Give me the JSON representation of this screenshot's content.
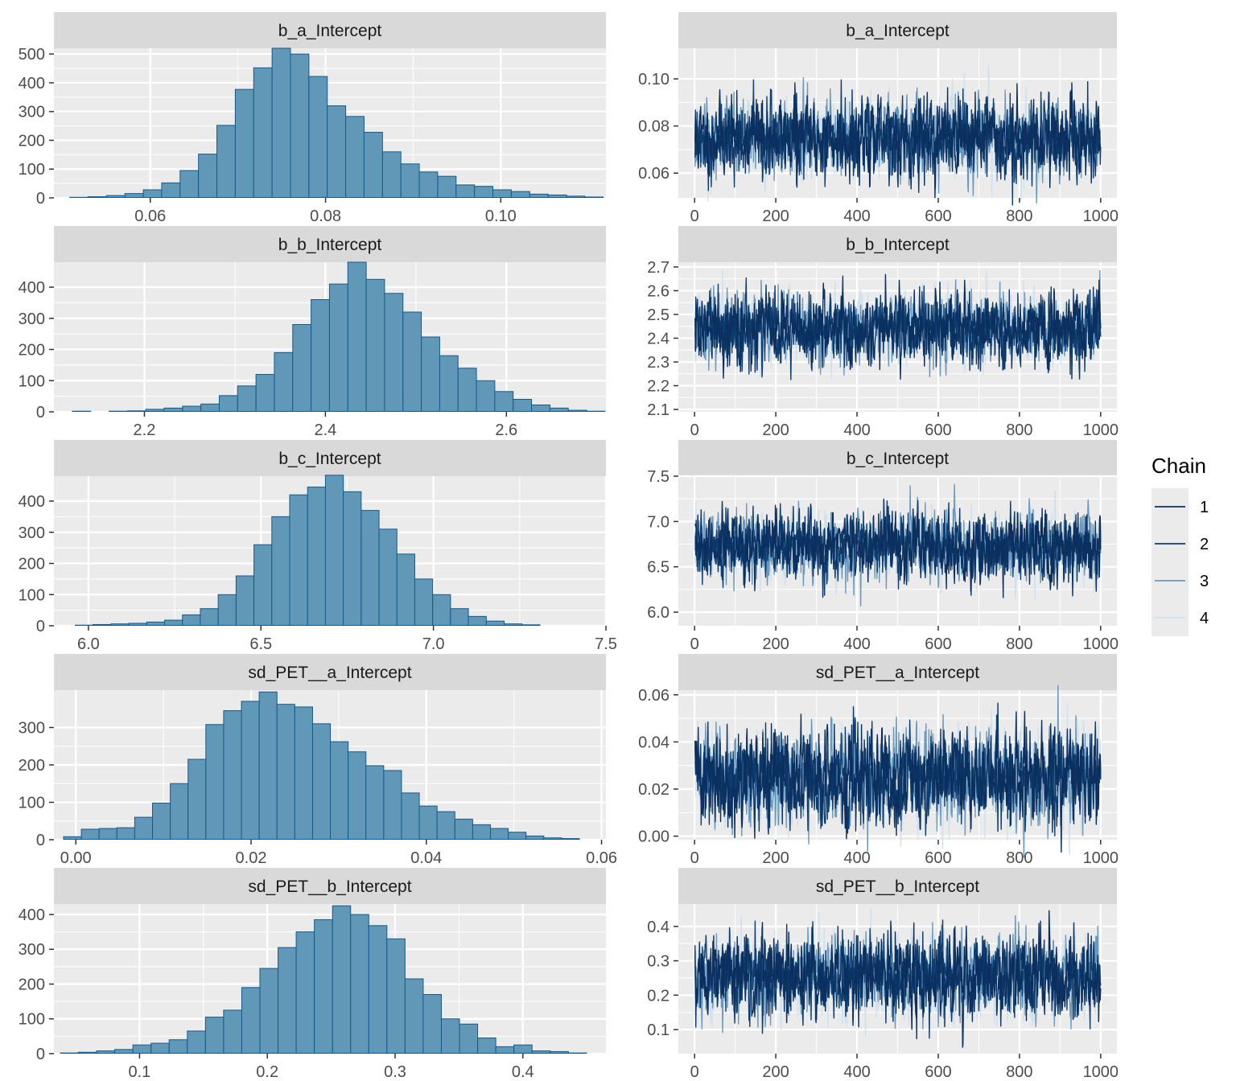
{
  "legend": {
    "title": "Chain",
    "entries": [
      {
        "label": "1",
        "color": "#0b3060"
      },
      {
        "label": "2",
        "color": "#0d3d6e"
      },
      {
        "label": "3",
        "color": "#6b99bd"
      },
      {
        "label": "4",
        "color": "#d0e1ee"
      }
    ]
  },
  "colors": {
    "panel_bg": "#ebebeb",
    "strip_bg": "#d9d9d9",
    "grid": "#ffffff",
    "hist_fill": "#6198b8",
    "hist_outline": "#145a8c"
  },
  "chart_data": [
    {
      "type": "bar",
      "title": "b_a_Intercept",
      "xlim": [
        0.049,
        0.112
      ],
      "ylim": [
        0,
        520
      ],
      "x_ticks": [
        0.06,
        0.08,
        0.1
      ],
      "x_tick_labels": [
        "0.06",
        "0.08",
        "0.10"
      ],
      "y_ticks": [
        0,
        100,
        200,
        300,
        400,
        500
      ],
      "y_tick_labels": [
        "0",
        "100",
        "200",
        "300",
        "400",
        "500"
      ],
      "bin_start": 0.0487,
      "bin_width": 0.0021,
      "counts": [
        0,
        2,
        4,
        8,
        15,
        28,
        52,
        95,
        152,
        252,
        377,
        452,
        520,
        500,
        422,
        320,
        283,
        228,
        160,
        118,
        90,
        75,
        45,
        40,
        28,
        22,
        13,
        10,
        6,
        3
      ]
    },
    {
      "type": "line",
      "title": "b_a_Intercept",
      "xlim": [
        -40,
        1040
      ],
      "ylim": [
        0.0495,
        0.113
      ],
      "x_ticks": [
        0,
        200,
        400,
        600,
        800,
        1000
      ],
      "x_tick_labels": [
        "0",
        "200",
        "400",
        "600",
        "800",
        "1000"
      ],
      "y_ticks": [
        0.06,
        0.08,
        0.1
      ],
      "y_tick_labels": [
        "0.06",
        "0.08",
        "0.10"
      ],
      "iterations": 1000,
      "series": [
        {
          "name": "1",
          "mean": 0.075,
          "sd": 0.008,
          "seed": 11
        },
        {
          "name": "2",
          "mean": 0.075,
          "sd": 0.008,
          "seed": 12
        },
        {
          "name": "3",
          "mean": 0.075,
          "sd": 0.008,
          "seed": 13
        },
        {
          "name": "4",
          "mean": 0.075,
          "sd": 0.008,
          "seed": 14
        }
      ]
    },
    {
      "type": "bar",
      "title": "b_b_Intercept",
      "xlim": [
        2.1,
        2.71
      ],
      "ylim": [
        0,
        480
      ],
      "x_ticks": [
        2.2,
        2.4,
        2.6
      ],
      "x_tick_labels": [
        "2.2",
        "2.4",
        "2.6"
      ],
      "y_ticks": [
        0,
        100,
        200,
        300,
        400
      ],
      "y_tick_labels": [
        "0",
        "100",
        "200",
        "300",
        "400"
      ],
      "bin_start": 2.1,
      "bin_width": 0.0203,
      "counts": [
        1,
        2,
        1,
        2,
        3,
        8,
        12,
        18,
        25,
        52,
        83,
        120,
        190,
        280,
        360,
        410,
        480,
        425,
        380,
        320,
        240,
        180,
        140,
        100,
        65,
        40,
        22,
        12,
        5,
        2
      ]
    },
    {
      "type": "line",
      "title": "b_b_Intercept",
      "xlim": [
        -40,
        1040
      ],
      "ylim": [
        2.09,
        2.72
      ],
      "x_ticks": [
        0,
        200,
        400,
        600,
        800,
        1000
      ],
      "x_tick_labels": [
        "0",
        "200",
        "400",
        "600",
        "800",
        "1000"
      ],
      "y_ticks": [
        2.1,
        2.2,
        2.3,
        2.4,
        2.5,
        2.6,
        2.7
      ],
      "y_tick_labels": [
        "2.1",
        "2.2",
        "2.3",
        "2.4",
        "2.5",
        "2.6",
        "2.7"
      ],
      "iterations": 1000,
      "series": [
        {
          "name": "1",
          "mean": 2.44,
          "sd": 0.07,
          "seed": 21
        },
        {
          "name": "2",
          "mean": 2.44,
          "sd": 0.07,
          "seed": 22
        },
        {
          "name": "3",
          "mean": 2.44,
          "sd": 0.07,
          "seed": 23
        },
        {
          "name": "4",
          "mean": 2.44,
          "sd": 0.07,
          "seed": 24
        }
      ]
    },
    {
      "type": "bar",
      "title": "b_c_Intercept",
      "xlim": [
        5.9,
        7.5
      ],
      "ylim": [
        0,
        480
      ],
      "x_ticks": [
        6.0,
        6.5,
        7.0,
        7.5
      ],
      "x_tick_labels": [
        "6.0",
        "6.5",
        "7.0",
        "7.5"
      ],
      "y_ticks": [
        0,
        100,
        200,
        300,
        400
      ],
      "y_tick_labels": [
        "0",
        "100",
        "200",
        "300",
        "400"
      ],
      "bin_start": 5.91,
      "bin_width": 0.0518,
      "counts": [
        1,
        2,
        4,
        6,
        8,
        12,
        18,
        35,
        55,
        100,
        160,
        260,
        350,
        420,
        445,
        483,
        430,
        370,
        310,
        230,
        150,
        100,
        55,
        30,
        15,
        6,
        3,
        1,
        1,
        0
      ]
    },
    {
      "type": "line",
      "title": "b_c_Intercept",
      "xlim": [
        -40,
        1040
      ],
      "ylim": [
        5.85,
        7.5
      ],
      "x_ticks": [
        0,
        200,
        400,
        600,
        800,
        1000
      ],
      "x_tick_labels": [
        "0",
        "200",
        "400",
        "600",
        "800",
        "1000"
      ],
      "y_ticks": [
        6.0,
        6.5,
        7.0,
        7.5
      ],
      "y_tick_labels": [
        "6.0",
        "6.5",
        "7.0",
        "7.5"
      ],
      "iterations": 1000,
      "series": [
        {
          "name": "1",
          "mean": 6.72,
          "sd": 0.18,
          "seed": 31
        },
        {
          "name": "2",
          "mean": 6.72,
          "sd": 0.18,
          "seed": 32
        },
        {
          "name": "3",
          "mean": 6.72,
          "sd": 0.18,
          "seed": 33
        },
        {
          "name": "4",
          "mean": 6.72,
          "sd": 0.18,
          "seed": 34
        }
      ]
    },
    {
      "type": "bar",
      "title": "sd_PET__a_Intercept",
      "xlim": [
        -0.0025,
        0.0605
      ],
      "ylim": [
        0,
        400
      ],
      "x_ticks": [
        0.0,
        0.02,
        0.04,
        0.06
      ],
      "x_tick_labels": [
        "0.00",
        "0.02",
        "0.04",
        "0.06"
      ],
      "y_ticks": [
        0,
        100,
        200,
        300
      ],
      "y_tick_labels": [
        "0",
        "100",
        "200",
        "300"
      ],
      "bin_start": -0.0014,
      "bin_width": 0.00203,
      "counts": [
        8,
        28,
        30,
        32,
        60,
        98,
        150,
        215,
        308,
        345,
        370,
        395,
        362,
        355,
        310,
        262,
        235,
        198,
        185,
        125,
        90,
        75,
        55,
        40,
        30,
        20,
        10,
        5,
        3,
        1
      ]
    },
    {
      "type": "line",
      "title": "sd_PET__a_Intercept",
      "xlim": [
        -40,
        1040
      ],
      "ylim": [
        -0.0015,
        0.062
      ],
      "x_ticks": [
        0,
        200,
        400,
        600,
        800,
        1000
      ],
      "x_tick_labels": [
        "0",
        "200",
        "400",
        "600",
        "800",
        "1000"
      ],
      "y_ticks": [
        0.0,
        0.02,
        0.04,
        0.06
      ],
      "y_tick_labels": [
        "0.00",
        "0.02",
        "0.04",
        "0.06"
      ],
      "iterations": 1000,
      "series": [
        {
          "name": "1",
          "mean": 0.025,
          "sd": 0.01,
          "seed": 41
        },
        {
          "name": "2",
          "mean": 0.025,
          "sd": 0.01,
          "seed": 42
        },
        {
          "name": "3",
          "mean": 0.025,
          "sd": 0.01,
          "seed": 43
        },
        {
          "name": "4",
          "mean": 0.025,
          "sd": 0.01,
          "seed": 44
        }
      ]
    },
    {
      "type": "bar",
      "title": "sd_PET__b_Intercept",
      "xlim": [
        0.033,
        0.465
      ],
      "ylim": [
        0,
        430
      ],
      "x_ticks": [
        0.1,
        0.2,
        0.3,
        0.4
      ],
      "x_tick_labels": [
        "0.1",
        "0.2",
        "0.3",
        "0.4"
      ],
      "y_ticks": [
        0,
        100,
        200,
        300,
        400
      ],
      "y_tick_labels": [
        "0",
        "100",
        "200",
        "300",
        "400"
      ],
      "bin_start": 0.038,
      "bin_width": 0.0142,
      "counts": [
        2,
        4,
        8,
        12,
        25,
        30,
        40,
        65,
        105,
        125,
        190,
        245,
        305,
        350,
        385,
        425,
        400,
        368,
        330,
        215,
        170,
        100,
        85,
        45,
        20,
        25,
        8,
        6,
        2,
        1
      ]
    },
    {
      "type": "line",
      "title": "sd_PET__b_Intercept",
      "xlim": [
        -40,
        1040
      ],
      "ylim": [
        0.03,
        0.465
      ],
      "x_ticks": [
        0,
        200,
        400,
        600,
        800,
        1000
      ],
      "x_tick_labels": [
        "0",
        "200",
        "400",
        "600",
        "800",
        "1000"
      ],
      "y_ticks": [
        0.1,
        0.2,
        0.3,
        0.4
      ],
      "y_tick_labels": [
        "0.1",
        "0.2",
        "0.3",
        "0.4"
      ],
      "iterations": 1000,
      "series": [
        {
          "name": "1",
          "mean": 0.255,
          "sd": 0.058,
          "seed": 51
        },
        {
          "name": "2",
          "mean": 0.255,
          "sd": 0.058,
          "seed": 52
        },
        {
          "name": "3",
          "mean": 0.255,
          "sd": 0.058,
          "seed": 53
        },
        {
          "name": "4",
          "mean": 0.255,
          "sd": 0.058,
          "seed": 54
        }
      ]
    }
  ]
}
